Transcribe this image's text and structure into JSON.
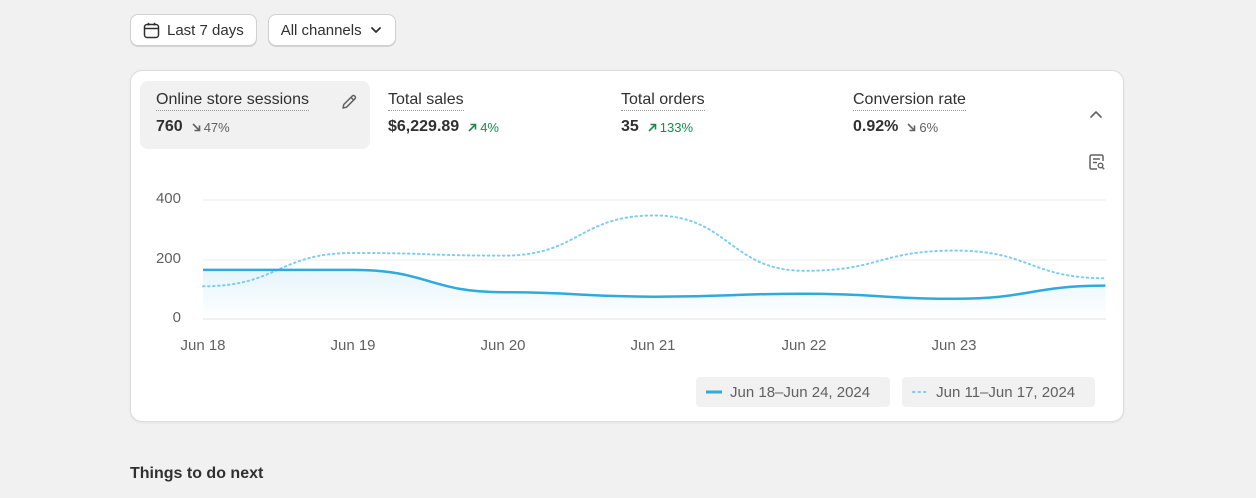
{
  "filters": {
    "date_label": "Last 7 days",
    "channels_label": "All channels"
  },
  "metrics": [
    {
      "label": "Online store sessions",
      "value": "760",
      "delta": "47%",
      "direction": "down"
    },
    {
      "label": "Total sales",
      "value": "$6,229.89",
      "delta": "4%",
      "direction": "up"
    },
    {
      "label": "Total orders",
      "value": "35",
      "delta": "133%",
      "direction": "up"
    },
    {
      "label": "Conversion rate",
      "value": "0.92%",
      "delta": "6%",
      "direction": "down"
    }
  ],
  "icons": {
    "calendar": "calendar-icon",
    "chevron_down": "chevron-down-icon",
    "pencil": "pencil-icon",
    "chevron_up": "chevron-up-icon",
    "chart_filter": "chart-filter-icon"
  },
  "colors": {
    "current_series": "#2eaadf",
    "previous_series": "#7fcdee",
    "up": "#1a8a4a",
    "down": "#616161"
  },
  "chart_data": {
    "type": "line",
    "x": [
      "Jun 18",
      "Jun 19",
      "Jun 20",
      "Jun 21",
      "Jun 22",
      "Jun 23",
      "Jun 24"
    ],
    "ylim": [
      0,
      400
    ],
    "yticks": [
      "400",
      "200",
      "0"
    ],
    "xticks": [
      "Jun 18",
      "Jun 19",
      "Jun 20",
      "Jun 21",
      "Jun 22",
      "Jun 23"
    ],
    "grid": true,
    "legend_position": "bottom-right",
    "series": [
      {
        "name": "Jun 18–Jun 24, 2024",
        "style": "solid",
        "values": [
          165,
          165,
          90,
          75,
          85,
          68,
          112
        ]
      },
      {
        "name": "Jun 11–Jun 17, 2024",
        "style": "dotted",
        "values": [
          110,
          222,
          213,
          348,
          162,
          230,
          137
        ]
      }
    ]
  },
  "section": {
    "title": "Things to do next"
  }
}
